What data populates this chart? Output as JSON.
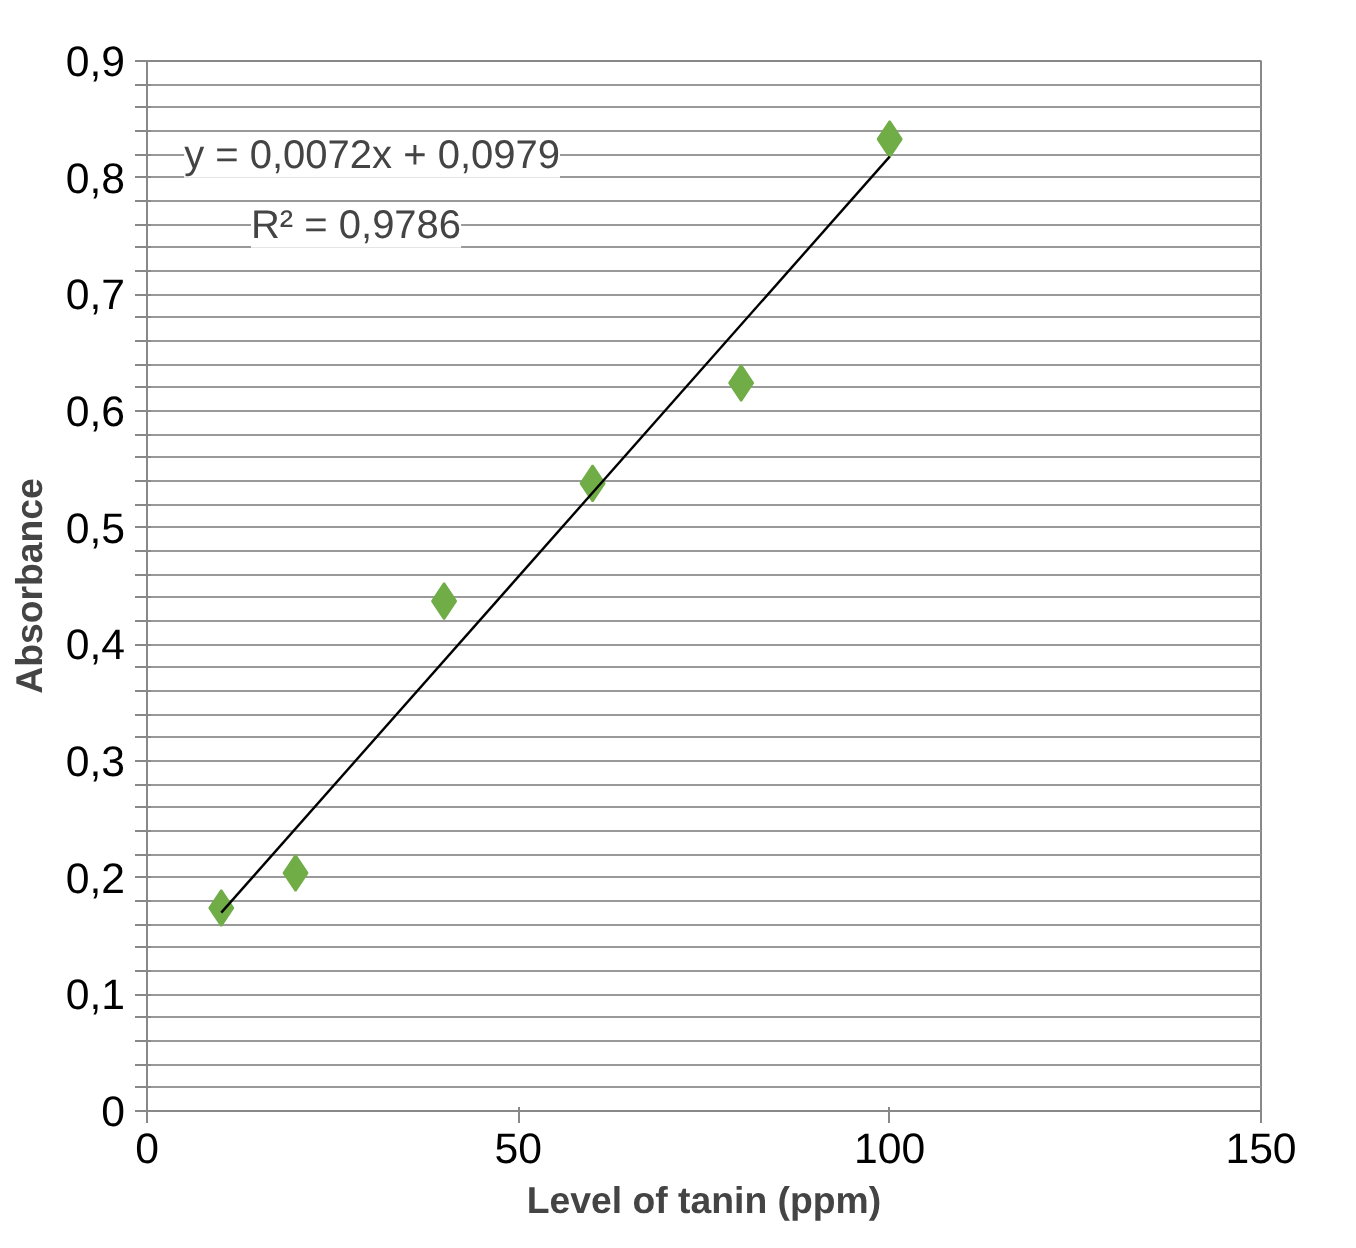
{
  "chart_data": {
    "type": "scatter",
    "xlabel": "Level of tanin (ppm)",
    "ylabel": "Absorbance",
    "x": [
      10,
      20,
      40,
      60,
      80,
      100
    ],
    "series": [
      {
        "type": "scatter",
        "color": "#70ad47",
        "marker": "diamond",
        "values": [
          0.174,
          0.204,
          0.437,
          0.538,
          0.624,
          0.833
        ]
      },
      {
        "type": "line",
        "color": "#000000",
        "marker": "none",
        "line_style": "solid",
        "x": [
          10,
          100
        ],
        "values": [
          0.17,
          0.818
        ]
      }
    ],
    "xlim": [
      0,
      150
    ],
    "xticks": [
      0,
      50,
      100,
      150
    ],
    "ylim": [
      0,
      0.9
    ],
    "yticks": [
      0,
      {
        "value": 0.02,
        "label": null
      },
      {
        "value": 0.04,
        "label": null
      },
      {
        "value": 0.06,
        "label": null
      },
      {
        "value": 0.08,
        "label": null
      },
      {
        "value": 0.1,
        "label": "0,1"
      },
      {
        "value": 0.12,
        "label": null
      },
      {
        "value": 0.14,
        "label": null
      },
      {
        "value": 0.16,
        "label": null
      },
      {
        "value": 0.18,
        "label": null
      },
      {
        "value": 0.2,
        "label": "0,2"
      },
      {
        "value": 0.22,
        "label": null
      },
      {
        "value": 0.24,
        "label": null
      },
      {
        "value": 0.26,
        "label": null
      },
      {
        "value": 0.28,
        "label": null
      },
      {
        "value": 0.3,
        "label": "0,3"
      },
      {
        "value": 0.32,
        "label": null
      },
      {
        "value": 0.34,
        "label": null
      },
      {
        "value": 0.36,
        "label": null
      },
      {
        "value": 0.38,
        "label": null
      },
      {
        "value": 0.4,
        "label": "0,4"
      },
      {
        "value": 0.42,
        "label": null
      },
      {
        "value": 0.44,
        "label": null
      },
      {
        "value": 0.46,
        "label": null
      },
      {
        "value": 0.48,
        "label": null
      },
      {
        "value": 0.5,
        "label": "0,5"
      },
      {
        "value": 0.52,
        "label": null
      },
      {
        "value": 0.54,
        "label": null
      },
      {
        "value": 0.56,
        "label": null
      },
      {
        "value": 0.58,
        "label": null
      },
      {
        "value": 0.6,
        "label": "0,6"
      },
      {
        "value": 0.62,
        "label": null
      },
      {
        "value": 0.64,
        "label": null
      },
      {
        "value": 0.66,
        "label": null
      },
      {
        "value": 0.68,
        "label": null
      },
      {
        "value": 0.7,
        "label": "0,7"
      },
      {
        "value": 0.72,
        "label": null
      },
      {
        "value": 0.74,
        "label": null
      },
      {
        "value": 0.76,
        "label": null
      },
      {
        "value": 0.78,
        "label": null
      },
      {
        "value": 0.8,
        "label": "0,8"
      },
      {
        "value": 0.82,
        "label": null
      },
      {
        "value": 0.84,
        "label": null
      },
      {
        "value": 0.86,
        "label": null
      },
      {
        "value": 0.88,
        "label": null
      },
      {
        "value": 0.9,
        "label": "0,9"
      }
    ],
    "grid": "y",
    "annotations": [
      "y = 0,0072x + 0,0979",
      "R² = 0,9786"
    ]
  }
}
